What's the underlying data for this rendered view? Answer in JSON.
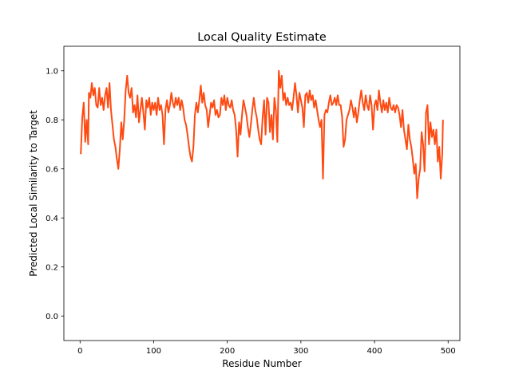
{
  "chart_data": {
    "type": "line",
    "title": "Local Quality Estimate",
    "xlabel": "Residue Number",
    "ylabel": "Predicted Local Similarity to Target",
    "xlim": [
      -22,
      516
    ],
    "ylim": [
      -0.1,
      1.1
    ],
    "xticks": [
      0,
      100,
      200,
      300,
      400,
      500
    ],
    "yticks": [
      0.0,
      0.2,
      0.4,
      0.6,
      0.8,
      1.0
    ],
    "xtick_labels": [
      "0",
      "100",
      "200",
      "300",
      "400",
      "500"
    ],
    "ytick_labels": [
      "0.0",
      "0.2",
      "0.4",
      "0.6",
      "0.8",
      "1.0"
    ],
    "grid": false,
    "legend": "none",
    "series": [
      {
        "color": "#ff4a12",
        "points": [
          [
            1,
            0.66
          ],
          [
            3,
            0.81
          ],
          [
            5,
            0.87
          ],
          [
            7,
            0.71
          ],
          [
            9,
            0.8
          ],
          [
            11,
            0.7
          ],
          [
            12,
            0.91
          ],
          [
            14,
            0.89
          ],
          [
            16,
            0.95
          ],
          [
            18,
            0.9
          ],
          [
            20,
            0.93
          ],
          [
            22,
            0.86
          ],
          [
            24,
            0.85
          ],
          [
            26,
            0.93
          ],
          [
            28,
            0.86
          ],
          [
            30,
            0.89
          ],
          [
            32,
            0.84
          ],
          [
            34,
            0.9
          ],
          [
            36,
            0.93
          ],
          [
            38,
            0.85
          ],
          [
            40,
            0.95
          ],
          [
            42,
            0.84
          ],
          [
            44,
            0.78
          ],
          [
            46,
            0.72
          ],
          [
            48,
            0.69
          ],
          [
            50,
            0.64
          ],
          [
            52,
            0.6
          ],
          [
            54,
            0.68
          ],
          [
            56,
            0.79
          ],
          [
            58,
            0.72
          ],
          [
            60,
            0.8
          ],
          [
            62,
            0.92
          ],
          [
            64,
            0.98
          ],
          [
            66,
            0.91
          ],
          [
            68,
            0.89
          ],
          [
            70,
            0.93
          ],
          [
            72,
            0.83
          ],
          [
            74,
            0.86
          ],
          [
            76,
            0.81
          ],
          [
            78,
            0.9
          ],
          [
            80,
            0.79
          ],
          [
            82,
            0.84
          ],
          [
            84,
            0.89
          ],
          [
            86,
            0.83
          ],
          [
            88,
            0.76
          ],
          [
            90,
            0.88
          ],
          [
            92,
            0.85
          ],
          [
            94,
            0.89
          ],
          [
            96,
            0.82
          ],
          [
            98,
            0.87
          ],
          [
            100,
            0.84
          ],
          [
            102,
            0.87
          ],
          [
            104,
            0.82
          ],
          [
            106,
            0.89
          ],
          [
            108,
            0.84
          ],
          [
            110,
            0.86
          ],
          [
            112,
            0.82
          ],
          [
            114,
            0.7
          ],
          [
            116,
            0.84
          ],
          [
            118,
            0.88
          ],
          [
            120,
            0.83
          ],
          [
            122,
            0.86
          ],
          [
            124,
            0.91
          ],
          [
            126,
            0.87
          ],
          [
            128,
            0.85
          ],
          [
            130,
            0.89
          ],
          [
            132,
            0.86
          ],
          [
            134,
            0.89
          ],
          [
            136,
            0.84
          ],
          [
            138,
            0.88
          ],
          [
            140,
            0.85
          ],
          [
            142,
            0.8
          ],
          [
            144,
            0.78
          ],
          [
            146,
            0.74
          ],
          [
            148,
            0.69
          ],
          [
            150,
            0.65
          ],
          [
            152,
            0.63
          ],
          [
            154,
            0.69
          ],
          [
            156,
            0.82
          ],
          [
            158,
            0.87
          ],
          [
            160,
            0.83
          ],
          [
            162,
            0.88
          ],
          [
            164,
            0.94
          ],
          [
            166,
            0.87
          ],
          [
            168,
            0.91
          ],
          [
            170,
            0.86
          ],
          [
            172,
            0.84
          ],
          [
            174,
            0.77
          ],
          [
            176,
            0.82
          ],
          [
            178,
            0.87
          ],
          [
            180,
            0.85
          ],
          [
            182,
            0.88
          ],
          [
            184,
            0.82
          ],
          [
            186,
            0.84
          ],
          [
            188,
            0.81
          ],
          [
            190,
            0.82
          ],
          [
            192,
            0.89
          ],
          [
            194,
            0.86
          ],
          [
            196,
            0.9
          ],
          [
            198,
            0.84
          ],
          [
            200,
            0.89
          ],
          [
            202,
            0.86
          ],
          [
            204,
            0.85
          ],
          [
            206,
            0.88
          ],
          [
            208,
            0.84
          ],
          [
            210,
            0.82
          ],
          [
            212,
            0.76
          ],
          [
            214,
            0.65
          ],
          [
            216,
            0.79
          ],
          [
            218,
            0.74
          ],
          [
            220,
            0.82
          ],
          [
            222,
            0.88
          ],
          [
            224,
            0.85
          ],
          [
            226,
            0.82
          ],
          [
            228,
            0.77
          ],
          [
            230,
            0.73
          ],
          [
            232,
            0.78
          ],
          [
            234,
            0.84
          ],
          [
            236,
            0.89
          ],
          [
            238,
            0.84
          ],
          [
            240,
            0.81
          ],
          [
            242,
            0.76
          ],
          [
            244,
            0.72
          ],
          [
            246,
            0.7
          ],
          [
            248,
            0.81
          ],
          [
            250,
            0.88
          ],
          [
            252,
            0.74
          ],
          [
            254,
            0.89
          ],
          [
            256,
            0.87
          ],
          [
            258,
            0.75
          ],
          [
            260,
            0.82
          ],
          [
            262,
            0.72
          ],
          [
            264,
            0.89
          ],
          [
            266,
            0.84
          ],
          [
            268,
            0.71
          ],
          [
            270,
            1.0
          ],
          [
            272,
            0.93
          ],
          [
            274,
            0.98
          ],
          [
            276,
            0.88
          ],
          [
            278,
            0.91
          ],
          [
            280,
            0.86
          ],
          [
            282,
            0.89
          ],
          [
            284,
            0.86
          ],
          [
            286,
            0.87
          ],
          [
            288,
            0.84
          ],
          [
            290,
            0.89
          ],
          [
            292,
            0.95
          ],
          [
            294,
            0.9
          ],
          [
            296,
            0.83
          ],
          [
            298,
            0.91
          ],
          [
            300,
            0.88
          ],
          [
            302,
            0.85
          ],
          [
            304,
            0.77
          ],
          [
            306,
            0.9
          ],
          [
            308,
            0.91
          ],
          [
            310,
            0.87
          ],
          [
            312,
            0.92
          ],
          [
            314,
            0.88
          ],
          [
            316,
            0.9
          ],
          [
            318,
            0.85
          ],
          [
            320,
            0.88
          ],
          [
            322,
            0.84
          ],
          [
            324,
            0.8
          ],
          [
            326,
            0.77
          ],
          [
            328,
            0.8
          ],
          [
            330,
            0.56
          ],
          [
            332,
            0.82
          ],
          [
            334,
            0.84
          ],
          [
            336,
            0.83
          ],
          [
            338,
            0.87
          ],
          [
            340,
            0.9
          ],
          [
            342,
            0.86
          ],
          [
            344,
            0.87
          ],
          [
            346,
            0.89
          ],
          [
            348,
            0.86
          ],
          [
            350,
            0.9
          ],
          [
            352,
            0.86
          ],
          [
            354,
            0.86
          ],
          [
            356,
            0.81
          ],
          [
            358,
            0.69
          ],
          [
            360,
            0.72
          ],
          [
            362,
            0.8
          ],
          [
            364,
            0.82
          ],
          [
            366,
            0.84
          ],
          [
            368,
            0.88
          ],
          [
            370,
            0.85
          ],
          [
            372,
            0.81
          ],
          [
            374,
            0.85
          ],
          [
            376,
            0.79
          ],
          [
            378,
            0.83
          ],
          [
            380,
            0.88
          ],
          [
            382,
            0.92
          ],
          [
            384,
            0.87
          ],
          [
            386,
            0.84
          ],
          [
            388,
            0.9
          ],
          [
            390,
            0.86
          ],
          [
            392,
            0.84
          ],
          [
            394,
            0.9
          ],
          [
            396,
            0.86
          ],
          [
            398,
            0.76
          ],
          [
            400,
            0.86
          ],
          [
            402,
            0.88
          ],
          [
            404,
            0.84
          ],
          [
            406,
            0.92
          ],
          [
            408,
            0.87
          ],
          [
            410,
            0.83
          ],
          [
            412,
            0.88
          ],
          [
            414,
            0.84
          ],
          [
            416,
            0.87
          ],
          [
            418,
            0.83
          ],
          [
            420,
            0.89
          ],
          [
            422,
            0.85
          ],
          [
            424,
            0.84
          ],
          [
            426,
            0.86
          ],
          [
            428,
            0.83
          ],
          [
            430,
            0.86
          ],
          [
            432,
            0.85
          ],
          [
            434,
            0.82
          ],
          [
            436,
            0.77
          ],
          [
            438,
            0.84
          ],
          [
            440,
            0.76
          ],
          [
            442,
            0.72
          ],
          [
            444,
            0.68
          ],
          [
            446,
            0.78
          ],
          [
            448,
            0.72
          ],
          [
            450,
            0.69
          ],
          [
            452,
            0.64
          ],
          [
            454,
            0.58
          ],
          [
            456,
            0.62
          ],
          [
            458,
            0.48
          ],
          [
            460,
            0.56
          ],
          [
            462,
            0.6
          ],
          [
            464,
            0.75
          ],
          [
            466,
            0.7
          ],
          [
            468,
            0.59
          ],
          [
            470,
            0.83
          ],
          [
            472,
            0.86
          ],
          [
            474,
            0.7
          ],
          [
            476,
            0.79
          ],
          [
            478,
            0.73
          ],
          [
            480,
            0.76
          ],
          [
            482,
            0.7
          ],
          [
            484,
            0.76
          ],
          [
            486,
            0.63
          ],
          [
            488,
            0.69
          ],
          [
            490,
            0.56
          ],
          [
            492,
            0.66
          ],
          [
            493,
            0.8
          ]
        ]
      }
    ]
  }
}
